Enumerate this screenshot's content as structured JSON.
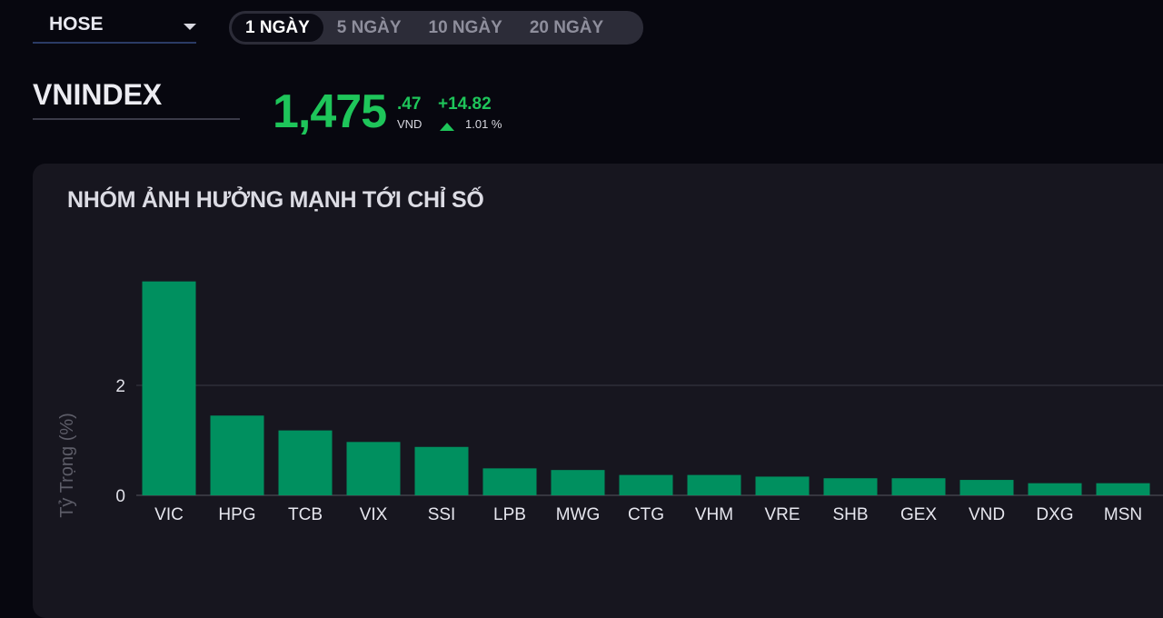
{
  "exchange": {
    "selected": "HOSE"
  },
  "periods": [
    {
      "label": "1 NGÀY",
      "active": true
    },
    {
      "label": "5 NGÀY",
      "active": false
    },
    {
      "label": "10 NGÀY",
      "active": false
    },
    {
      "label": "20 NGÀY",
      "active": false
    }
  ],
  "index": {
    "name": "VNINDEX",
    "price_int": "1,475",
    "price_dec": ".47",
    "unit": "VND",
    "change": "+14.82",
    "change_pct": "1.01 %"
  },
  "colors": {
    "up": "#1ec55a",
    "bar": "#00905f"
  },
  "panel": {
    "title": "NHÓM ẢNH HƯỞNG MẠNH TỚI CHỈ SỐ"
  },
  "chart_data": {
    "type": "bar",
    "title": "NHÓM ẢNH HƯỞNG MẠNH TỚI CHỈ SỐ",
    "ylabel": "Tỷ Trọng (%)",
    "categories": [
      "VIC",
      "HPG",
      "TCB",
      "VIX",
      "SSI",
      "LPB",
      "MWG",
      "CTG",
      "VHM",
      "VRE",
      "SHB",
      "GEX",
      "VND",
      "DXG",
      "MSN"
    ],
    "values": [
      3.89,
      1.45,
      1.18,
      0.97,
      0.88,
      0.49,
      0.46,
      0.37,
      0.37,
      0.34,
      0.31,
      0.31,
      0.28,
      0.22,
      0.22
    ],
    "yticks": [
      0,
      2
    ],
    "ylim": [
      0,
      4.5
    ],
    "grid": true
  }
}
